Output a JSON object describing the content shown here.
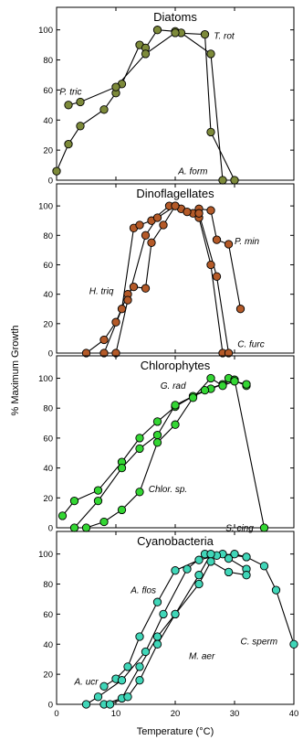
{
  "chart_data": {
    "type": "line",
    "xlabel": "Temperature (°C)",
    "ylabel": "% Maximum Growth",
    "xlim": [
      0,
      40
    ],
    "x_ticks": [
      0,
      10,
      20,
      30,
      40
    ],
    "x_tick_labels": [
      "0",
      "10",
      "20",
      "30",
      "40"
    ],
    "y_ticks": [
      0,
      20,
      40,
      60,
      80,
      100
    ],
    "y_tick_labels": [
      "0",
      "20",
      "40",
      "60",
      "80",
      "100"
    ],
    "grid": false,
    "legend": "none",
    "panels": [
      {
        "title": "Diatoms",
        "color": "#7d8a3a",
        "ylim": [
          0,
          115
        ],
        "annotations": [
          {
            "text": "P. tric",
            "x": 0.5,
            "y": 57
          },
          {
            "text": "T. rot",
            "x": 26.5,
            "y": 94
          },
          {
            "text": "A. form",
            "x": 20.5,
            "y": 4
          }
        ],
        "series": [
          {
            "x": [
              0,
              2,
              4,
              8,
              10,
              11,
              14,
              15,
              17,
              20,
              21,
              26,
              28
            ],
            "y": [
              6,
              24,
              36,
              47,
              58,
              64,
              90,
              88,
              100,
              99,
              98,
              84,
              0
            ]
          },
          {
            "x": [
              2,
              4,
              10,
              15,
              20,
              25,
              26,
              30
            ],
            "y": [
              50,
              52,
              62,
              84,
              98,
              97,
              32,
              0
            ]
          }
        ]
      },
      {
        "title": "Dinoflagellates",
        "color": "#b45a28",
        "ylim": [
          0,
          115
        ],
        "annotations": [
          {
            "text": "H. triq",
            "x": 5.5,
            "y": 40
          },
          {
            "text": "P. min",
            "x": 30,
            "y": 74
          },
          {
            "text": "C. furc",
            "x": 30.5,
            "y": 4
          }
        ],
        "series": [
          {
            "x": [
              5,
              8,
              10,
              12,
              13,
              15,
              16,
              18,
              20,
              21,
              23,
              24,
              26,
              27,
              29,
              31
            ],
            "y": [
              0,
              9,
              21,
              40,
              45,
              44,
              75,
              87,
              100,
              98,
              95,
              98,
              97,
              77,
              74,
              30
            ]
          },
          {
            "x": [
              8,
              11,
              13,
              14,
              16,
              19,
              22,
              24,
              26,
              28
            ],
            "y": [
              0,
              30,
              85,
              87,
              90,
              100,
              96,
              92,
              60,
              0
            ]
          },
          {
            "x": [
              10,
              12,
              15,
              17,
              20,
              24,
              27,
              29
            ],
            "y": [
              0,
              36,
              80,
              92,
              100,
              95,
              52,
              0
            ]
          }
        ]
      },
      {
        "title": "Chlorophytes",
        "color": "#33d633",
        "ylim": [
          0,
          115
        ],
        "annotations": [
          {
            "text": "G. rad",
            "x": 17.5,
            "y": 93
          },
          {
            "text": "Chlor. sp.",
            "x": 15.5,
            "y": 24
          },
          {
            "text": "S. cing",
            "x": 28.5,
            "y": -2
          }
        ],
        "series": [
          {
            "x": [
              1,
              3,
              7,
              11,
              14,
              17,
              20,
              23,
              26,
              28,
              29,
              32
            ],
            "y": [
              8,
              18,
              25,
              44,
              60,
              71,
              81,
              88,
              93,
              96,
              100,
              95
            ]
          },
          {
            "x": [
              3,
              7,
              11,
              14,
              17,
              20,
              25,
              30,
              35
            ],
            "y": [
              0,
              18,
              40,
              53,
              62,
              82,
              92,
              99,
              0
            ]
          },
          {
            "x": [
              5,
              8,
              11,
              14,
              17,
              20,
              23,
              26,
              28,
              30,
              32
            ],
            "y": [
              0,
              4,
              12,
              24,
              57,
              69,
              87,
              100,
              95,
              98,
              96
            ]
          }
        ]
      },
      {
        "title": "Cyanobacteria",
        "color": "#40d6b8",
        "ylim": [
          0,
          115
        ],
        "annotations": [
          {
            "text": "A. flos",
            "x": 12.5,
            "y": 74
          },
          {
            "text": "M. aer",
            "x": 22.3,
            "y": 30
          },
          {
            "text": "C. sperm",
            "x": 31,
            "y": 40
          },
          {
            "text": "A. ucr",
            "x": 3,
            "y": 13
          }
        ],
        "series": [
          {
            "x": [
              8,
              10,
              12,
              14,
              17,
              20,
              24,
              28,
              32,
              35,
              37,
              40
            ],
            "y": [
              12,
              17,
              25,
              45,
              68,
              89,
              96,
              100,
              98,
              92,
              76,
              40
            ]
          },
          {
            "x": [
              5,
              7,
              11,
              15,
              18,
              22,
              25,
              27,
              30,
              32
            ],
            "y": [
              0,
              5,
              16,
              35,
              60,
              90,
              100,
              99,
              100,
              98
            ]
          },
          {
            "x": [
              8,
              11,
              14,
              17,
              20,
              24,
              26,
              29,
              32
            ],
            "y": [
              0,
              4,
              25,
              45,
              60,
              86,
              100,
              97,
              90
            ]
          },
          {
            "x": [
              9,
              12,
              14,
              17,
              20,
              24,
              26,
              29,
              32
            ],
            "y": [
              0,
              5,
              16,
              40,
              60,
              80,
              95,
              88,
              86
            ]
          }
        ]
      }
    ]
  }
}
